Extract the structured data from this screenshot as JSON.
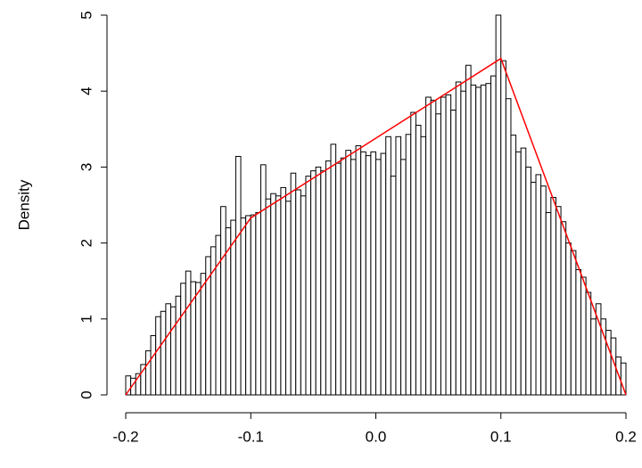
{
  "chart_data": {
    "type": "histogram",
    "ylabel": "Density",
    "bar_color": "#ffffff",
    "bar_edge": "#000000",
    "bins": [
      -0.2,
      -0.196,
      -0.192,
      -0.188,
      -0.184,
      -0.18,
      -0.176,
      -0.172,
      -0.168,
      -0.164,
      -0.16,
      -0.156,
      -0.152,
      -0.148,
      -0.144,
      -0.14,
      -0.136,
      -0.132,
      -0.128,
      -0.124,
      -0.12,
      -0.116,
      -0.112,
      -0.108,
      -0.104,
      -0.1,
      -0.096,
      -0.092,
      -0.088,
      -0.084,
      -0.08,
      -0.076,
      -0.072,
      -0.068,
      -0.064,
      -0.06,
      -0.056,
      -0.052,
      -0.048,
      -0.044,
      -0.04,
      -0.036,
      -0.032,
      -0.028,
      -0.024,
      -0.02,
      -0.016,
      -0.012,
      -0.008,
      -0.004,
      0,
      0.004,
      0.008,
      0.012,
      0.016,
      0.02,
      0.024,
      0.028,
      0.032,
      0.036,
      0.04,
      0.044,
      0.048,
      0.052,
      0.056,
      0.06,
      0.064,
      0.068,
      0.072,
      0.076,
      0.08,
      0.084,
      0.088,
      0.092,
      0.096,
      0.1,
      0.104,
      0.108,
      0.112,
      0.116,
      0.12,
      0.124,
      0.128,
      0.132,
      0.136,
      0.14,
      0.144,
      0.148,
      0.152,
      0.156,
      0.16,
      0.164,
      0.168,
      0.172,
      0.176,
      0.18,
      0.184,
      0.188,
      0.192,
      0.196,
      0.2
    ],
    "values": [
      0.25,
      0.22,
      0.28,
      0.4,
      0.58,
      0.78,
      1.03,
      1.1,
      1.2,
      1.16,
      1.3,
      1.47,
      1.63,
      1.49,
      1.48,
      1.6,
      1.82,
      1.95,
      2.1,
      2.48,
      2.2,
      2.3,
      3.14,
      2.33,
      2.36,
      2.37,
      2.4,
      3.03,
      2.58,
      2.65,
      2.62,
      2.73,
      2.55,
      2.92,
      2.7,
      2.62,
      2.88,
      2.95,
      3.0,
      2.95,
      3.08,
      3.3,
      3.05,
      3.12,
      3.22,
      3.1,
      3.28,
      3.2,
      3.15,
      3.2,
      3.1,
      3.18,
      3.4,
      2.88,
      3.4,
      3.1,
      3.43,
      3.72,
      3.55,
      3.4,
      3.92,
      3.88,
      3.7,
      3.92,
      3.95,
      3.75,
      4.12,
      4.0,
      4.34,
      4.08,
      4.05,
      4.08,
      4.1,
      4.2,
      5.0,
      4.4,
      3.9,
      3.42,
      3.2,
      3.25,
      3.0,
      2.8,
      2.9,
      2.75,
      2.4,
      2.6,
      2.48,
      2.28,
      2.0,
      1.9,
      1.65,
      1.55,
      1.35,
      1.0,
      1.2,
      1.0,
      0.85,
      0.75,
      0.5,
      0.42
    ],
    "line": {
      "color": "#ff0000",
      "x": [
        -0.2,
        -0.1,
        0.1,
        0.2
      ],
      "values": [
        0,
        2.33,
        4.43,
        0
      ]
    },
    "xlim": [
      -0.2,
      0.2
    ],
    "xticks": [
      -0.2,
      -0.1,
      {
        "value": 0,
        "label": "0.0"
      },
      0.1,
      0.2
    ],
    "ylim": [
      0,
      5
    ],
    "yticks": [
      0,
      1,
      2,
      3,
      4,
      5
    ]
  }
}
